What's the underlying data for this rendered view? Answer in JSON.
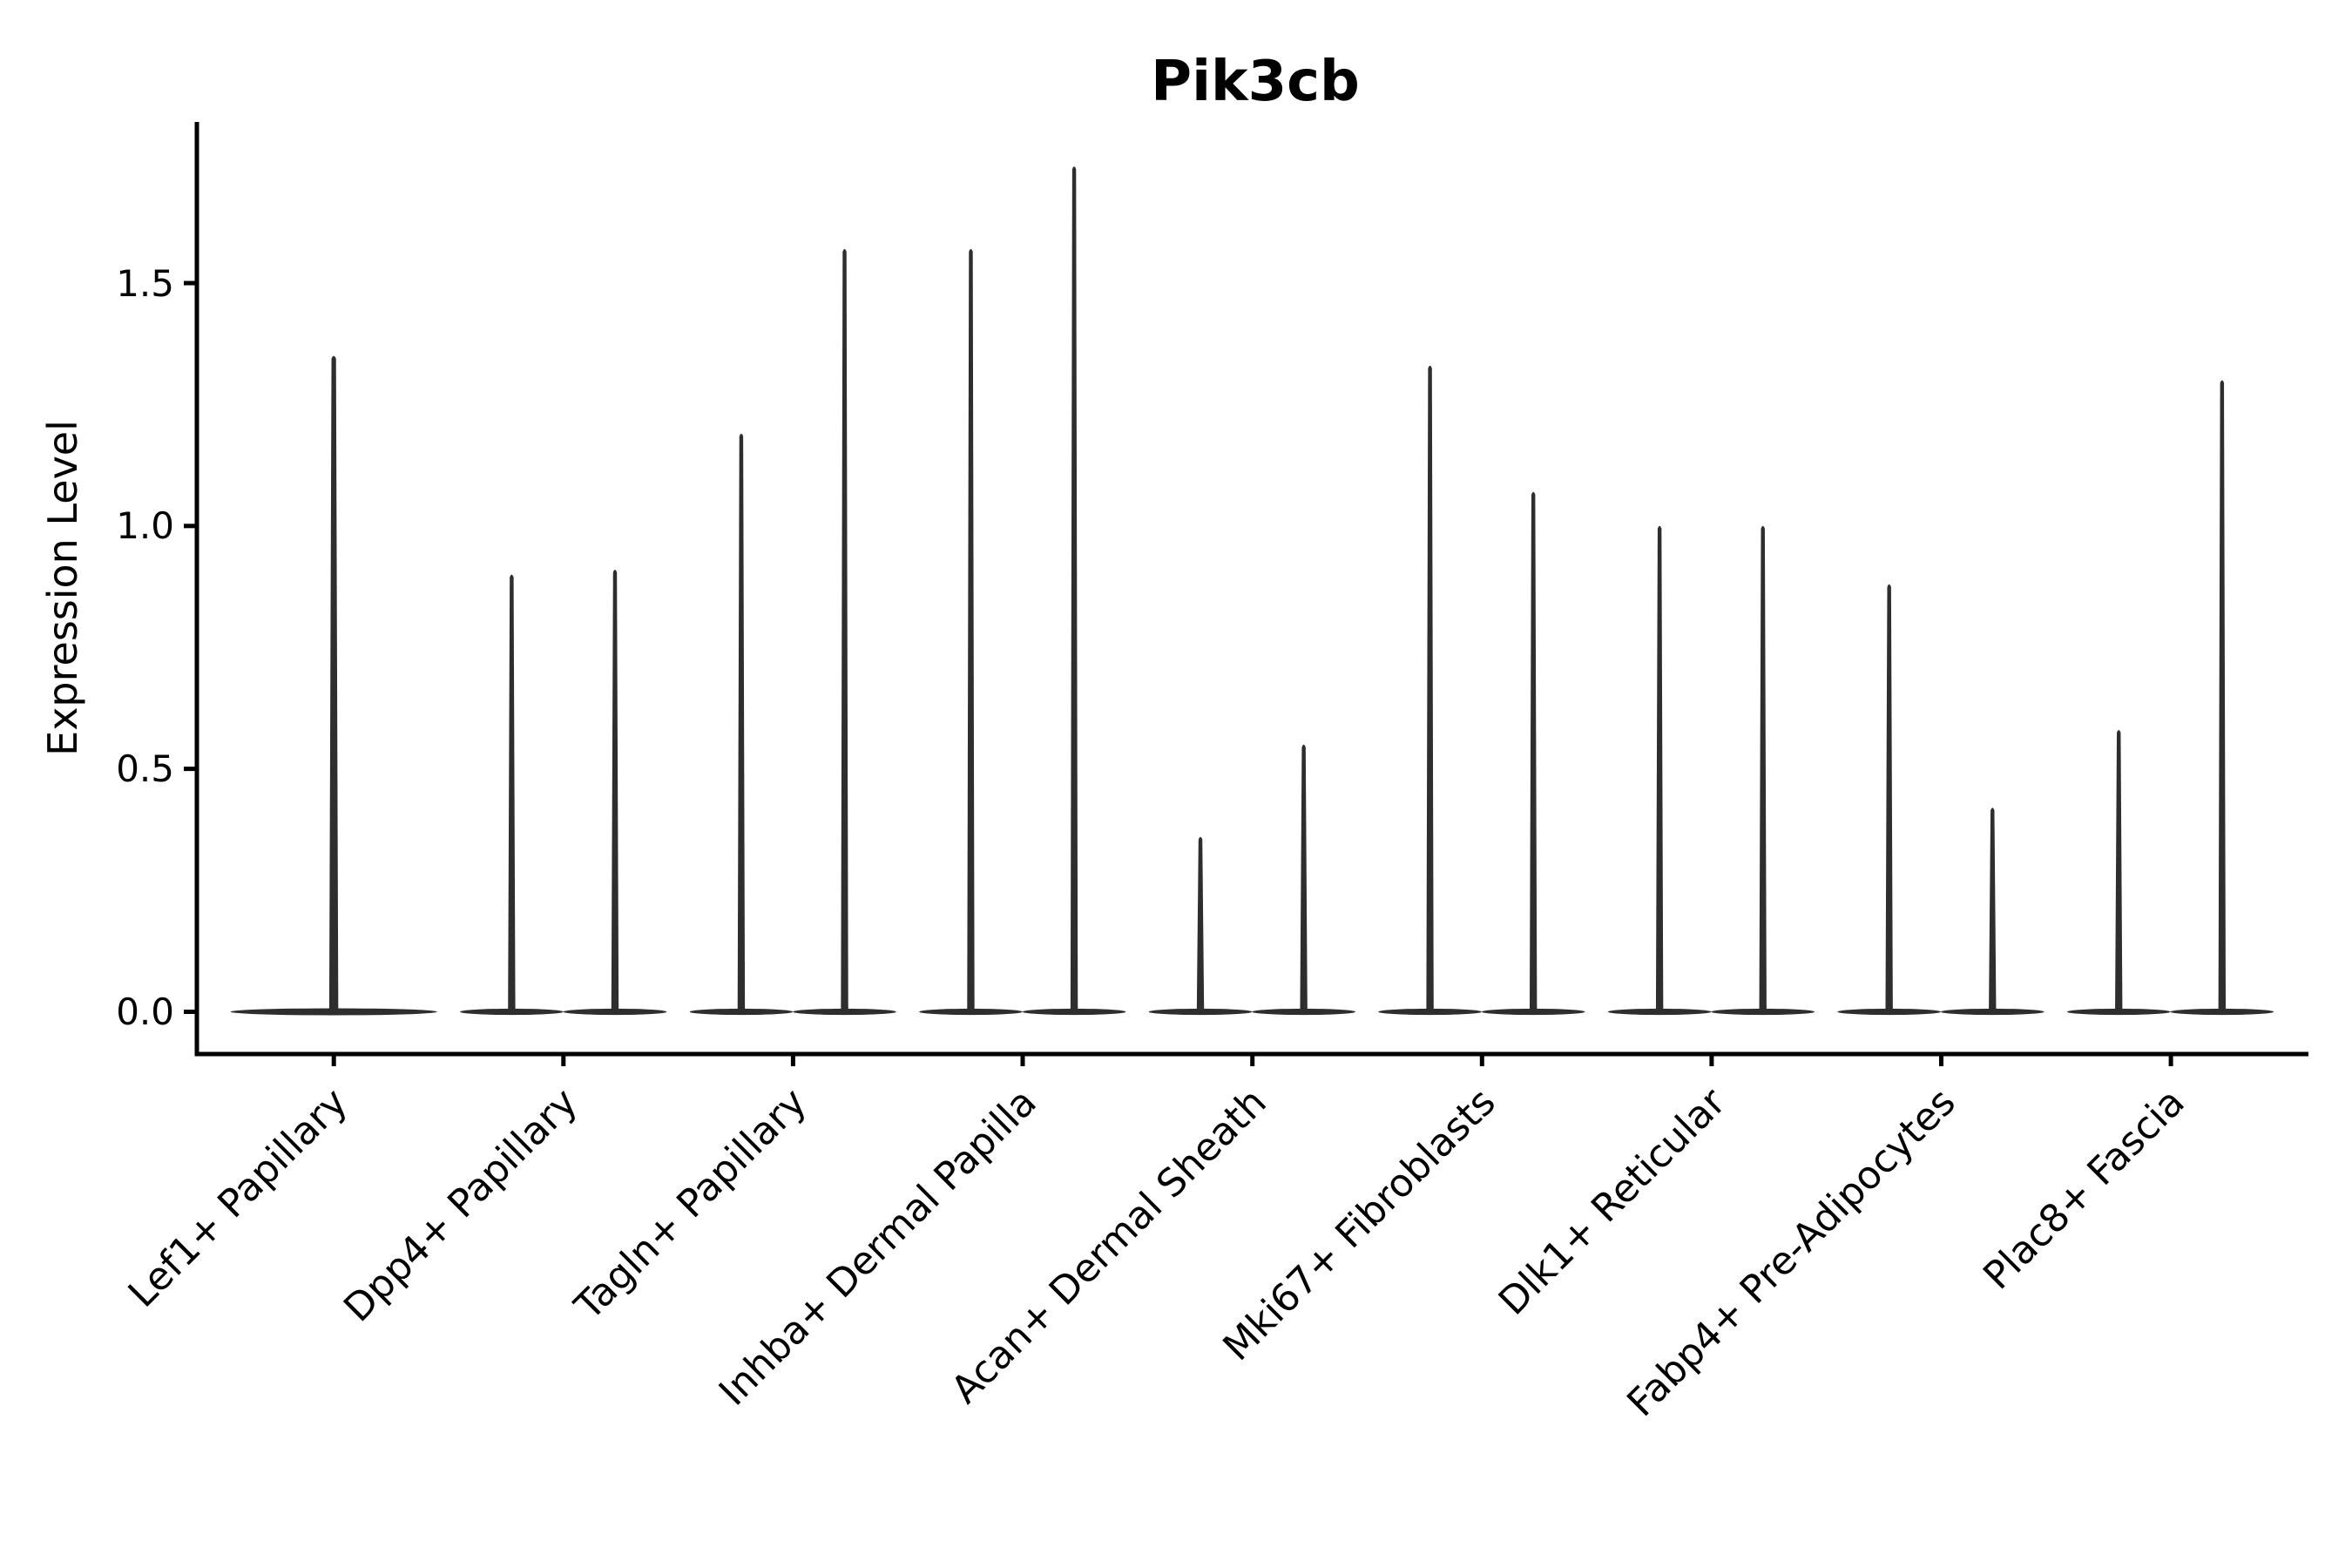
{
  "figure": {
    "title": "Pik3cb",
    "ylabel": "Expression Level",
    "ytick_labels": [
      "0.0",
      "0.5",
      "1.0",
      "1.5"
    ]
  },
  "colors": {
    "background": "#ffffff",
    "violin": "#2e2e2e",
    "axis": "#000000",
    "text": "#000000"
  },
  "chart_data": {
    "type": "violin",
    "title": "Pik3cb",
    "xlabel": "",
    "ylabel": "Expression Level",
    "yticks": [
      0.0,
      0.5,
      1.0,
      1.5
    ],
    "ylim": [
      -0.09,
      1.83
    ],
    "grid": false,
    "legend": "none",
    "categories": [
      "Lef1+ Papillary",
      "Dpp4+ Papillary",
      "Tagln+ Papillary",
      "Inhba+ Dermal Papilla",
      "Acan+ Dermal Sheath",
      "Mki67+ Fibroblasts",
      "Dlk1+ Reticular",
      "Fabp4+ Pre-Adipocytes",
      "Plac8+ Fascia"
    ],
    "violin_shape_note": "each violin is flat and wide at expression 0 with a thin vertical density spike reaching its max expression",
    "violins": [
      {
        "category": "Lef1+ Papillary",
        "cat": 0,
        "slot": "single",
        "min": 0,
        "max": 1.35
      },
      {
        "category": "Dpp4+ Papillary",
        "cat": 1,
        "slot": "left",
        "min": 0,
        "max": 0.9
      },
      {
        "category": "Dpp4+ Papillary",
        "cat": 1,
        "slot": "right",
        "min": 0,
        "max": 0.91
      },
      {
        "category": "Tagln+ Papillary",
        "cat": 2,
        "slot": "left",
        "min": 0,
        "max": 1.19
      },
      {
        "category": "Tagln+ Papillary",
        "cat": 2,
        "slot": "right",
        "min": 0,
        "max": 1.57
      },
      {
        "category": "Inhba+ Dermal Papilla",
        "cat": 3,
        "slot": "left",
        "min": 0,
        "max": 1.57
      },
      {
        "category": "Inhba+ Dermal Papilla",
        "cat": 3,
        "slot": "right",
        "min": 0,
        "max": 1.74
      },
      {
        "category": "Acan+ Dermal Sheath",
        "cat": 4,
        "slot": "left",
        "min": 0,
        "max": 0.36
      },
      {
        "category": "Acan+ Dermal Sheath",
        "cat": 4,
        "slot": "right",
        "min": 0,
        "max": 0.55
      },
      {
        "category": "Mki67+ Fibroblasts",
        "cat": 5,
        "slot": "left",
        "min": 0,
        "max": 1.33
      },
      {
        "category": "Mki67+ Fibroblasts",
        "cat": 5,
        "slot": "right",
        "min": 0,
        "max": 1.07
      },
      {
        "category": "Dlk1+ Reticular",
        "cat": 6,
        "slot": "left",
        "min": 0,
        "max": 1.0
      },
      {
        "category": "Dlk1+ Reticular",
        "cat": 6,
        "slot": "right",
        "min": 0,
        "max": 1.0
      },
      {
        "category": "Fabp4+ Pre-Adipocytes",
        "cat": 7,
        "slot": "left",
        "min": 0,
        "max": 0.88
      },
      {
        "category": "Fabp4+ Pre-Adipocytes",
        "cat": 7,
        "slot": "right",
        "min": 0,
        "max": 0.42
      },
      {
        "category": "Plac8+ Fascia",
        "cat": 8,
        "slot": "left",
        "min": 0,
        "max": 0.58
      },
      {
        "category": "Plac8+ Fascia",
        "cat": 8,
        "slot": "right",
        "min": 0,
        "max": 1.3
      }
    ]
  }
}
